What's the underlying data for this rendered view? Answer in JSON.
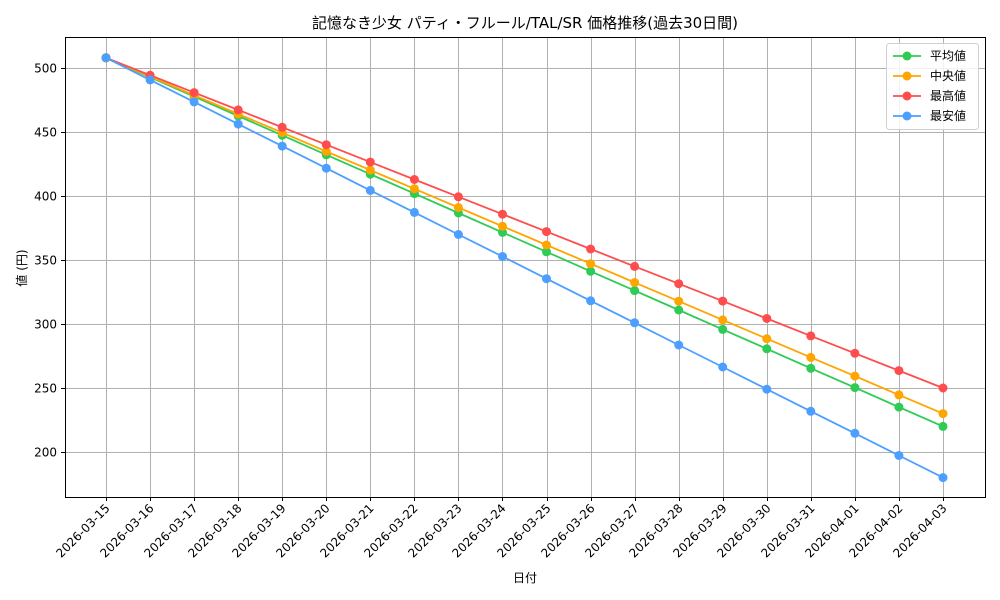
{
  "chart_data": {
    "type": "line",
    "title": "記憶なき少女 パティ・フルール/TAL/SR 価格推移(過去30日間)",
    "xlabel": "日付",
    "ylabel": "値 (円)",
    "ylim": [
      163,
      524
    ],
    "yticks": [
      200,
      250,
      300,
      350,
      400,
      450,
      500
    ],
    "grid": true,
    "legend_position": "upper right",
    "categories": [
      "2026-03-15",
      "2026-03-16",
      "2026-03-17",
      "2026-03-18",
      "2026-03-19",
      "2026-03-20",
      "2026-03-21",
      "2026-03-22",
      "2026-03-23",
      "2026-03-24",
      "2026-03-25",
      "2026-03-26",
      "2026-03-27",
      "2026-03-28",
      "2026-03-29",
      "2026-03-30",
      "2026-03-31",
      "2026-04-01",
      "2026-04-02",
      "2026-04-03"
    ],
    "series": [
      {
        "name": "平均値",
        "color": "#2ecc55",
        "values": [
          508,
          492.8,
          477.7,
          462.5,
          447.4,
          432.2,
          417.0,
          401.9,
          386.7,
          371.6,
          356.4,
          341.2,
          326.1,
          310.9,
          295.8,
          280.6,
          265.4,
          250.3,
          235.1,
          220
        ]
      },
      {
        "name": "中央値",
        "color": "#ffa500",
        "values": [
          508,
          493.4,
          478.7,
          464.1,
          449.5,
          434.8,
          420.2,
          405.6,
          391.0,
          376.3,
          361.7,
          347.1,
          332.4,
          317.8,
          303.2,
          288.5,
          273.9,
          259.3,
          244.6,
          230
        ]
      },
      {
        "name": "最高値",
        "color": "#ff4d4d",
        "values": [
          508,
          494.4,
          480.8,
          467.3,
          453.7,
          440.1,
          426.5,
          412.9,
          399.4,
          385.8,
          372.2,
          358.6,
          345.0,
          331.5,
          317.9,
          304.3,
          290.7,
          277.1,
          263.6,
          250
        ]
      },
      {
        "name": "最安値",
        "color": "#4d9fff",
        "values": [
          508,
          490.7,
          473.5,
          456.2,
          439.0,
          421.7,
          404.4,
          387.2,
          369.9,
          352.7,
          335.4,
          318.1,
          300.9,
          283.6,
          266.4,
          249.1,
          231.8,
          214.6,
          197.3,
          180
        ]
      }
    ]
  }
}
